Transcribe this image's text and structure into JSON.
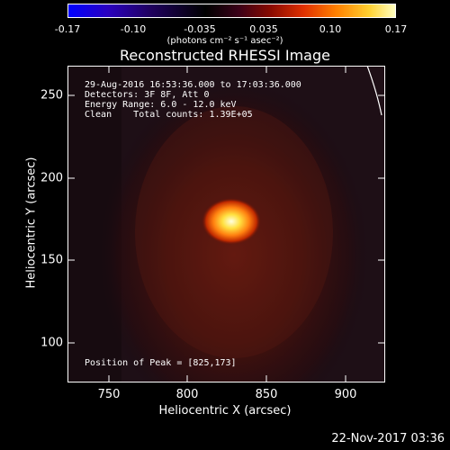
{
  "colorbar": {
    "ticks": [
      "-0.17",
      "-0.10",
      "-0.035",
      "0.035",
      "0.10",
      "0.17"
    ],
    "units_text": "(photons cm⁻² s⁻¹ asec⁻²)"
  },
  "plot": {
    "title": "Reconstructed RHESSI Image",
    "xlabel": "Heliocentric X (arcsec)",
    "ylabel": "Heliocentric Y (arcsec)",
    "xticks": [
      "750",
      "800",
      "850",
      "900"
    ],
    "yticks": [
      "250",
      "200",
      "150",
      "100"
    ],
    "info": {
      "time_range": "29-Aug-2016 16:53:36.000 to 17:03:36.000",
      "detectors": "Detectors: 3F 8F, Att 0",
      "energy": "Energy Range: 6.0 - 12.0 keV",
      "method": "Clean    Total counts: 1.39E+05"
    },
    "peak": "Position of Peak = [825,173]"
  },
  "footer": {
    "date": "22-Nov-2017 03:36"
  },
  "colors": {
    "background": "#000000",
    "colorbar_low": "#0000ff",
    "colorbar_mid": "#000000",
    "colorbar_high": "#ffff80"
  }
}
